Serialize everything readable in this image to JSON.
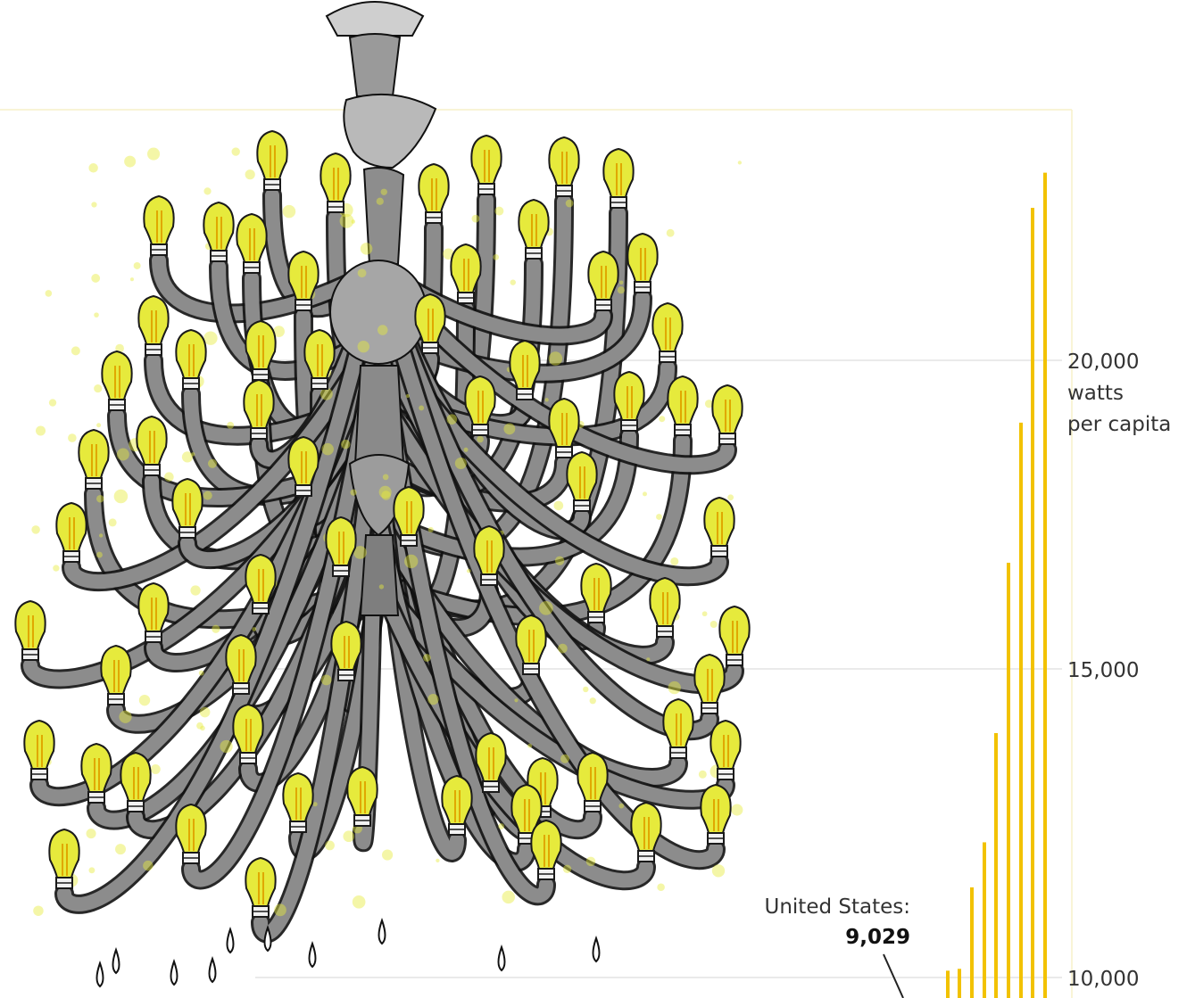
{
  "chart_data": {
    "type": "bar",
    "unit_line1": "watts",
    "unit_line2": "per capita",
    "y_ticks": [
      {
        "value": 20000,
        "label": "20,000"
      },
      {
        "value": 15000,
        "label": "15,000"
      },
      {
        "value": 10000,
        "label": "10,000"
      }
    ],
    "ylim": [
      10000,
      24000
    ],
    "grid": true,
    "values": [
      10110,
      10140,
      11460,
      12190,
      13960,
      16720,
      18990,
      22470,
      23040
    ],
    "annotation": {
      "label": "United States:",
      "value_label": "9,029",
      "value": 9029
    },
    "colors": {
      "bar": "#f2c200",
      "grid": "#e3e3e3",
      "frame": "#f7f0c8",
      "bulb": "#e6ea3c",
      "bulb_outline": "#1a1a1a",
      "arm": "#555555",
      "arm_outline": "#111111"
    },
    "illustration": "chandelier-illustration"
  }
}
